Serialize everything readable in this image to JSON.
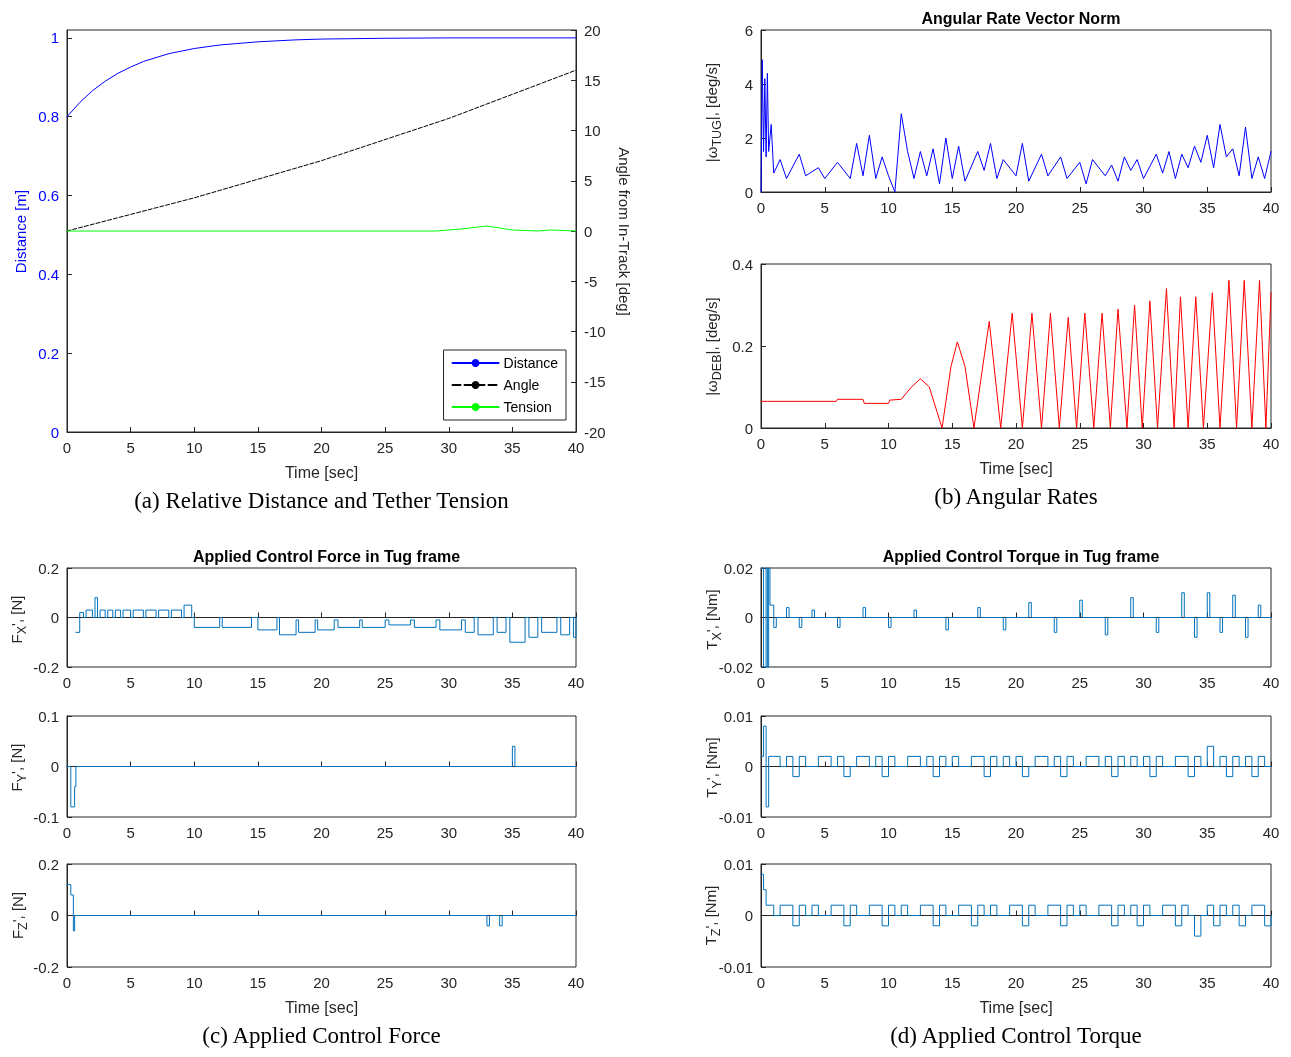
{
  "chart_data": [
    {
      "type": "line",
      "xlabel": "Time [sec]",
      "ylabel": "Distance [m]",
      "y2label": "Angle from In-Track [deg]",
      "annotations": [
        "(a)    Relative Distance and Tether Tension"
      ],
      "legend": "bottom right",
      "marker": "none",
      "series": [
        {
          "name": "Distance",
          "color": "#0000ff",
          "x": [
            0,
            1,
            2,
            3,
            4,
            5,
            6,
            8,
            10,
            12,
            15,
            18,
            20,
            25,
            30,
            40
          ],
          "values": [
            0.8,
            0.836,
            0.866,
            0.89,
            0.91,
            0.926,
            0.94,
            0.96,
            0.973,
            0.982,
            0.99,
            0.995,
            0.997,
            0.999,
            1,
            1
          ]
        },
        {
          "name": "Angle",
          "color": "#000000",
          "axis": "y2",
          "line_style": "dashed",
          "x": [
            0,
            10,
            20,
            30,
            40
          ],
          "values": [
            0,
            3.3,
            7,
            11.2,
            16
          ]
        },
        {
          "name": "Tension",
          "color": "#00ff00",
          "axis": "y2",
          "x": [
            0,
            29,
            31,
            33,
            34,
            35,
            37,
            38,
            40
          ],
          "values": [
            0,
            0,
            0.2,
            0.5,
            0.3,
            0.1,
            0,
            0.1,
            0
          ]
        }
      ],
      "xlim": [
        0,
        40
      ],
      "xticks": [
        0,
        5,
        10,
        15,
        20,
        25,
        30,
        35,
        40
      ],
      "ylim": [
        0,
        1.02
      ],
      "yticks": [
        0,
        0.2,
        0.4,
        0.6,
        0.8,
        1
      ],
      "y2lim": [
        -20,
        20
      ],
      "y2ticks": [
        -20,
        -15,
        -10,
        -5,
        0,
        5,
        10,
        15,
        20
      ]
    },
    {
      "type": "line",
      "title": "Angular Rate Vector Norm",
      "ylabel": "|ω$_{TUG}$|, [deg/s]",
      "marker": "none",
      "x": [
        0,
        0.1,
        0.2,
        0.3,
        0.4,
        0.5,
        0.6,
        0.8,
        1,
        1.5,
        2,
        3,
        3.5,
        4.5,
        5,
        6,
        7,
        7.5,
        8,
        8.5,
        9,
        9.5,
        10,
        10.5,
        11,
        11.5,
        12,
        12.5,
        13,
        13.5,
        14,
        14.5,
        15,
        15.5,
        16,
        17,
        17.5,
        18,
        18.5,
        19,
        20,
        20.5,
        21,
        22,
        22.5,
        23.5,
        24,
        25,
        25.5,
        26,
        27,
        27.5,
        28,
        28.5,
        29,
        29.5,
        30,
        31,
        31.5,
        32,
        32.5,
        33,
        33.5,
        34,
        34.5,
        35,
        35.5,
        36,
        36.5,
        37,
        37.5,
        38,
        38.5,
        39,
        39.5,
        40
      ],
      "series": [
        {
          "color": "#0000ff",
          "values": [
            0,
            4.9,
            1.5,
            4.2,
            1.3,
            4.4,
            1.5,
            2.5,
            0.7,
            1.2,
            0.5,
            1.4,
            0.6,
            0.9,
            0.5,
            1.1,
            0.5,
            1.8,
            0.6,
            2.1,
            0.5,
            1.3,
            0.6,
            0,
            2.9,
            1.5,
            0.5,
            1.5,
            0.6,
            1.6,
            0.3,
            2,
            0.5,
            1.7,
            0.4,
            1.5,
            0.8,
            1.8,
            0.5,
            1.2,
            0.6,
            1.8,
            0.4,
            1.4,
            0.6,
            1.3,
            0.5,
            1.1,
            0.3,
            1.2,
            0.6,
            1,
            0.4,
            1.3,
            0.8,
            1.2,
            0.5,
            1.4,
            0.7,
            1.5,
            0.5,
            1.4,
            0.9,
            1.7,
            1.1,
            2.1,
            0.9,
            2.5,
            1.3,
            1.6,
            0.6,
            2.4,
            0.5,
            1.3,
            0.5,
            1.5
          ]
        }
      ],
      "xlim": [
        0,
        40
      ],
      "xticks": [
        0,
        5,
        10,
        15,
        20,
        25,
        30,
        35,
        40
      ],
      "ylim": [
        0,
        6
      ],
      "yticks": [
        0,
        2,
        4,
        6
      ]
    },
    {
      "type": "line",
      "xlabel": "Time [sec]",
      "ylabel": "|ω$_{DEB}$|, [deg/s]",
      "annotations": [
        "(b)    Angular Rates"
      ],
      "marker": "none",
      "x": [
        0,
        5.9,
        6,
        8,
        8.1,
        10,
        10.1,
        11,
        11.8,
        12.5,
        13.2,
        13.8,
        14.2,
        14.9,
        15.4,
        16,
        16.7,
        17.9,
        18.8,
        19.7,
        20.5,
        21.25,
        22,
        22.7,
        23.4,
        24.1,
        24.75,
        25.4,
        26.1,
        26.75,
        27.4,
        28,
        28.7,
        29.3,
        29.9,
        30.5,
        31.1,
        31.8,
        32.4,
        32.9,
        33.5,
        34.1,
        34.7,
        35.4,
        36,
        36.7,
        37.3,
        37.9,
        38.5,
        39.1,
        39.6,
        40
      ],
      "series": [
        {
          "color": "#ff0000",
          "values": [
            0.065,
            0.065,
            0.07,
            0.07,
            0.06,
            0.06,
            0.068,
            0.07,
            0.1,
            0.12,
            0.1,
            0.04,
            0,
            0.15,
            0.21,
            0.15,
            0,
            0.26,
            0,
            0.28,
            0,
            0.28,
            0,
            0.28,
            0,
            0.27,
            0,
            0.28,
            0,
            0.28,
            0,
            0.29,
            0,
            0.3,
            0,
            0.31,
            0,
            0.34,
            0,
            0.32,
            0,
            0.32,
            0,
            0.33,
            0,
            0.36,
            0,
            0.36,
            0,
            0.36,
            0,
            0.33
          ]
        }
      ],
      "xlim": [
        0,
        40
      ],
      "xticks": [
        0,
        5,
        10,
        15,
        20,
        25,
        30,
        35,
        40
      ],
      "ylim": [
        0,
        0.4
      ],
      "yticks": [
        0,
        0.2,
        0.4
      ]
    },
    {
      "type": "step",
      "title": "Applied Control Force in Tug frame",
      "ylabel": "F$_{X}$', [N]",
      "marker": "none",
      "x": [
        0.7,
        1,
        1.3,
        1.5,
        2,
        2.2,
        2.4,
        2.6,
        3,
        3.2,
        3.6,
        3.8,
        4.2,
        4.4,
        5,
        5.2,
        6,
        6.2,
        7,
        7.2,
        8,
        8.2,
        9,
        9.2,
        9.8,
        10,
        12,
        12.2,
        14.5,
        15,
        16.5,
        16.7,
        18,
        18.2,
        19.5,
        19.7,
        21,
        21.3,
        23,
        23.2,
        25,
        25.3,
        27,
        27.3,
        29,
        29.3,
        31,
        31.3,
        32,
        32.3,
        33.5,
        33.8,
        34.5,
        34.8,
        36,
        36.3,
        37,
        37.3,
        38.5,
        38.8,
        39.5,
        39.8,
        40
      ],
      "series": [
        {
          "color": "#0072bd",
          "values": [
            -0.06,
            0.02,
            0,
            0.03,
            0,
            0.08,
            0,
            0.03,
            0,
            0.03,
            0,
            0.03,
            0,
            0.03,
            0,
            0.03,
            0,
            0.03,
            0,
            0.03,
            0,
            0.03,
            0,
            0.05,
            0,
            -0.04,
            0,
            -0.04,
            0,
            -0.05,
            0,
            -0.07,
            -0.01,
            -0.06,
            -0.01,
            -0.05,
            -0.01,
            -0.04,
            -0.01,
            -0.04,
            -0.01,
            -0.03,
            -0.01,
            -0.04,
            -0.01,
            -0.05,
            -0.01,
            -0.06,
            0,
            -0.07,
            0,
            -0.06,
            0,
            -0.1,
            0,
            -0.08,
            0,
            -0.06,
            0,
            -0.07,
            0,
            -0.08,
            0
          ]
        }
      ],
      "xlim": [
        0,
        40
      ],
      "xticks": [
        0,
        5,
        10,
        15,
        20,
        25,
        30,
        35,
        40
      ],
      "ylim": [
        -0.2,
        0.2
      ],
      "yticks": [
        -0.2,
        0,
        0.2
      ]
    },
    {
      "type": "step",
      "ylabel": "F$_{Y}$', [N]",
      "marker": "none",
      "x": [
        0,
        0.3,
        0.6,
        0.7,
        35,
        35.2,
        40
      ],
      "series": [
        {
          "color": "#0072bd",
          "values": [
            0,
            -0.08,
            -0.04,
            0,
            0.04,
            0,
            0
          ]
        }
      ],
      "xlim": [
        0,
        40
      ],
      "xticks": [
        0,
        5,
        10,
        15,
        20,
        25,
        30,
        35,
        40
      ],
      "ylim": [
        -0.1,
        0.1
      ],
      "yticks": [
        -0.1,
        0,
        0.1
      ]
    },
    {
      "type": "step",
      "xlabel": "Time [sec]",
      "ylabel": "F$_{Z}$', [N]",
      "annotations": [
        "(c)    Applied Control Force"
      ],
      "marker": "none",
      "x": [
        0,
        0.3,
        0.5,
        0.6,
        33,
        33.2,
        34,
        34.2,
        40
      ],
      "series": [
        {
          "color": "#0072bd",
          "values": [
            0.12,
            0.08,
            -0.06,
            0,
            -0.04,
            0,
            -0.04,
            0,
            0
          ]
        }
      ],
      "xlim": [
        0,
        40
      ],
      "xticks": [
        0,
        5,
        10,
        15,
        20,
        25,
        30,
        35,
        40
      ],
      "ylim": [
        -0.2,
        0.2
      ],
      "yticks": [
        -0.2,
        0,
        0.2
      ]
    },
    {
      "type": "step",
      "title": "Applied Control Torque in Tug frame",
      "ylabel": "T$_{X}$', [Nm]",
      "marker": "none",
      "x": [
        0,
        0.2,
        0.4,
        0.5,
        0.6,
        0.7,
        1,
        1.2,
        2,
        2.2,
        3,
        3.2,
        4,
        4.2,
        6,
        6.2,
        8,
        8.2,
        10,
        10.2,
        12,
        12.2,
        14.5,
        14.7,
        17,
        17.2,
        19,
        19.2,
        21,
        21.2,
        23,
        23.2,
        25,
        25.2,
        27,
        27.2,
        29,
        29.2,
        31,
        31.2,
        33,
        33.2,
        34,
        34.2,
        35,
        35.2,
        36,
        36.2,
        37,
        37.2,
        38,
        38.2,
        39,
        39.2,
        40
      ],
      "series": [
        {
          "color": "#0072bd",
          "values": [
            0.02,
            -0.02,
            0.02,
            -0.02,
            0.02,
            0.005,
            -0.004,
            0,
            0.004,
            0,
            -0.004,
            0,
            0.003,
            0,
            -0.004,
            0,
            0.004,
            0,
            -0.004,
            0,
            0.003,
            0,
            -0.005,
            0,
            0.004,
            0,
            -0.005,
            0,
            0.006,
            0,
            -0.006,
            0,
            0.007,
            0,
            -0.007,
            0,
            0.008,
            0,
            -0.006,
            0,
            0.01,
            0,
            -0.008,
            0,
            0.01,
            0,
            -0.006,
            0,
            0.009,
            0,
            -0.008,
            0,
            0.005,
            0,
            0
          ]
        }
      ],
      "xlim": [
        0,
        40
      ],
      "xticks": [
        0,
        5,
        10,
        15,
        20,
        25,
        30,
        35,
        40
      ],
      "ylim": [
        -0.02,
        0.02
      ],
      "yticks": [
        -0.02,
        0,
        0.02
      ]
    },
    {
      "type": "step",
      "ylabel": "T$_{Y}$', [Nm]",
      "marker": "none",
      "x": [
        0,
        0.2,
        0.4,
        0.6,
        1,
        1.5,
        2,
        2.5,
        3,
        3.5,
        4,
        4.5,
        5,
        5.5,
        6,
        6.5,
        7,
        7.5,
        8,
        8.5,
        9,
        9.5,
        10,
        10.5,
        11,
        11.5,
        12,
        12.5,
        13,
        13.5,
        14,
        14.5,
        15,
        15.5,
        16,
        16.5,
        17,
        17.5,
        18,
        18.5,
        19,
        19.5,
        20,
        20.5,
        21,
        21.5,
        22,
        22.5,
        23,
        23.5,
        24,
        24.5,
        25,
        25.5,
        26,
        26.5,
        27,
        27.5,
        28,
        28.5,
        29,
        29.5,
        30,
        30.5,
        31,
        31.5,
        32,
        32.5,
        33,
        33.5,
        34,
        34.5,
        35,
        35.5,
        36,
        36.5,
        37,
        37.5,
        38,
        38.5,
        39,
        39.5,
        40
      ],
      "series": [
        {
          "color": "#0072bd",
          "values": [
            0.002,
            0.008,
            -0.008,
            0.002,
            0.002,
            0,
            0.002,
            -0.002,
            0.002,
            0,
            0,
            0.002,
            0.002,
            0,
            0.002,
            -0.002,
            0,
            0.002,
            0.002,
            0,
            0.002,
            -0.002,
            0.002,
            0,
            0,
            0.002,
            0.002,
            0,
            0.002,
            -0.002,
            0.002,
            0,
            0.002,
            0,
            0,
            0.002,
            0.002,
            -0.002,
            0.002,
            0,
            0.002,
            0,
            0.002,
            -0.002,
            0,
            0.002,
            0.002,
            0,
            0.002,
            -0.002,
            0.002,
            0,
            0,
            0.002,
            0.002,
            0,
            0.002,
            -0.002,
            0.002,
            0,
            0.002,
            0,
            0.002,
            -0.002,
            0.002,
            0,
            0,
            0.002,
            0.002,
            -0.002,
            0.002,
            0,
            0.004,
            0,
            0.002,
            -0.002,
            0.002,
            0,
            0.002,
            -0.002,
            0.002,
            0,
            0
          ]
        }
      ],
      "xlim": [
        0,
        40
      ],
      "xticks": [
        0,
        5,
        10,
        15,
        20,
        25,
        30,
        35,
        40
      ],
      "ylim": [
        -0.01,
        0.01
      ],
      "yticks": [
        -0.01,
        0,
        0.01
      ]
    },
    {
      "type": "step",
      "xlabel": "Time [sec]",
      "ylabel": "T$_{Z}$', [Nm]",
      "annotations": [
        "(d)    Applied Control Torque"
      ],
      "marker": "none",
      "x": [
        0,
        0.2,
        0.4,
        1,
        1.5,
        2,
        2.5,
        3,
        3.5,
        4,
        4.5,
        5,
        5.5,
        6,
        6.5,
        7,
        7.5,
        8,
        8.5,
        9,
        9.5,
        10,
        10.5,
        11,
        11.5,
        12,
        12.5,
        13,
        13.5,
        14,
        14.5,
        15,
        15.5,
        16,
        16.5,
        17,
        17.5,
        18,
        18.5,
        19,
        19.5,
        20,
        20.5,
        21,
        21.5,
        22,
        22.5,
        23,
        23.5,
        24,
        24.5,
        25,
        25.5,
        26,
        26.5,
        27,
        27.5,
        28,
        28.5,
        29,
        29.5,
        30,
        30.5,
        31,
        31.5,
        32,
        32.5,
        33,
        33.5,
        34,
        34.5,
        35,
        35.5,
        36,
        36.5,
        37,
        37.5,
        38,
        38.5,
        39,
        39.5,
        40
      ],
      "series": [
        {
          "color": "#0072bd",
          "values": [
            0.008,
            0.005,
            0.002,
            0,
            0.002,
            0.002,
            -0.002,
            0.002,
            0,
            0.002,
            0,
            0,
            0.002,
            0.002,
            -0.002,
            0.002,
            0,
            0,
            0.002,
            0.002,
            -0.002,
            0.002,
            0,
            0.002,
            0,
            0,
            0.002,
            0.002,
            -0.002,
            0.002,
            0,
            0,
            0.002,
            0.002,
            -0.002,
            0.002,
            0,
            0.002,
            0,
            0,
            0.002,
            0.002,
            -0.002,
            0.002,
            0,
            0,
            0.002,
            0.002,
            -0.002,
            0.002,
            0,
            0.002,
            0,
            0,
            0.002,
            0.002,
            -0.002,
            0.002,
            0,
            0.002,
            -0.002,
            0.002,
            0,
            0,
            0.002,
            0.002,
            -0.002,
            0.002,
            0,
            -0.004,
            0,
            0.002,
            -0.002,
            0.002,
            0,
            0.002,
            -0.002,
            0,
            0.002,
            0.002,
            -0.002,
            0
          ]
        }
      ],
      "xlim": [
        0,
        40
      ],
      "xticks": [
        0,
        5,
        10,
        15,
        20,
        25,
        30,
        35,
        40
      ],
      "ylim": [
        -0.01,
        0.01
      ],
      "yticks": [
        -0.01,
        0,
        0.01
      ]
    }
  ]
}
